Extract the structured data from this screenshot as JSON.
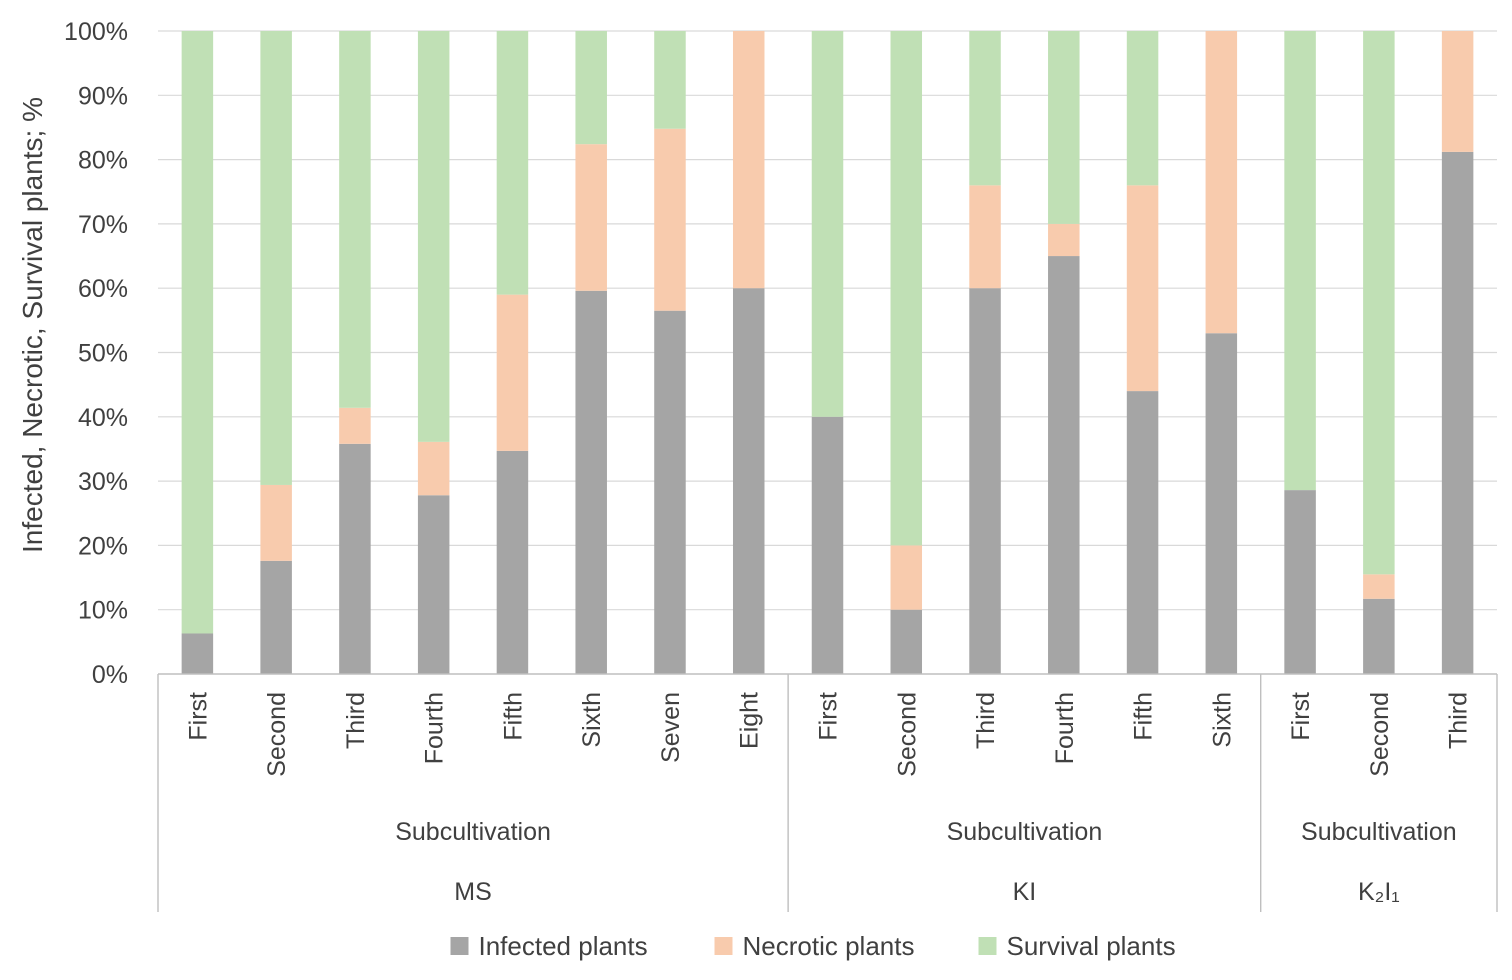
{
  "chart_data": {
    "type": "bar",
    "stacked": true,
    "percent": true,
    "ylabel": "Infected, Necrotic, Survival  plants; %",
    "ylim": [
      0,
      100
    ],
    "yticks": [
      "0%",
      "10%",
      "20%",
      "30%",
      "40%",
      "50%",
      "60%",
      "70%",
      "80%",
      "90%",
      "100%"
    ],
    "grid": true,
    "legend_position": "bottom",
    "groups": [
      {
        "label": "MS",
        "sublabel": "Subcultivation",
        "categories": [
          "First",
          "Second",
          "Third",
          "Fourth",
          "Fifth",
          "Sixth",
          "Seven",
          "Eight"
        ]
      },
      {
        "label": "KI",
        "sublabel": "Subcultivation",
        "categories": [
          "First",
          "Second",
          "Third",
          "Fourth",
          "Fifth",
          "Sixth"
        ]
      },
      {
        "label": "K₂I₁",
        "sublabel": "Subcultivation",
        "categories": [
          "First",
          "Second",
          "Third"
        ]
      }
    ],
    "series": [
      {
        "name": "Infected plants",
        "color": "#a5a5a5",
        "values": [
          6.3,
          17.6,
          35.8,
          27.8,
          34.7,
          59.6,
          56.5,
          60,
          40,
          10,
          60,
          65,
          44,
          53,
          28.6,
          11.7,
          81.2
        ]
      },
      {
        "name": "Necrotic plants",
        "color": "#f8cbad",
        "values": [
          0,
          11.8,
          5.6,
          8.3,
          24.3,
          22.8,
          28.3,
          40,
          0,
          10,
          16,
          5,
          32,
          47,
          0,
          3.8,
          18.8
        ]
      },
      {
        "name": "Survival plants",
        "color": "#c0e0b5",
        "values": [
          93.7,
          70.6,
          58.6,
          63.9,
          41,
          17.6,
          15.2,
          0,
          60,
          80,
          24,
          30,
          24,
          0,
          71.4,
          84.5,
          0
        ]
      }
    ]
  }
}
